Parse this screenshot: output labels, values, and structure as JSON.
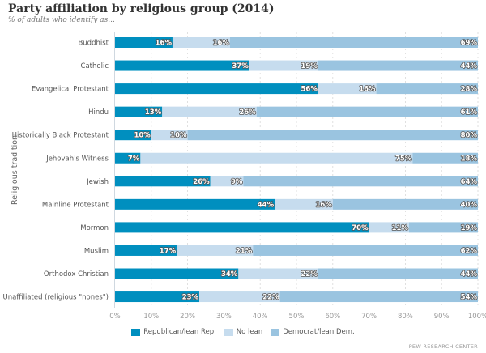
{
  "chart_data": {
    "type": "bar",
    "orientation": "horizontal",
    "stacked": true,
    "title": "Party affiliation by religious group (2014)",
    "subtitle": "% of adults who identify as...",
    "xlabel": "",
    "ylabel": "Religious tradition",
    "xlim": [
      0,
      100
    ],
    "x_ticks": [
      "0%",
      "10%",
      "20%",
      "30%",
      "40%",
      "50%",
      "60%",
      "70%",
      "80%",
      "90%",
      "100%"
    ],
    "grid": true,
    "legend_position": "bottom",
    "categories": [
      "Buddhist",
      "Catholic",
      "Evangelical Protestant",
      "Hindu",
      "Historically Black Protestant",
      "Jehovah's Witness",
      "Jewish",
      "Mainline Protestant",
      "Mormon",
      "Muslim",
      "Orthodox Christian",
      "Unaffiliated (religious \"nones\")"
    ],
    "series": [
      {
        "name": "Republican/lean Rep.",
        "color": "#008fbf",
        "values": [
          16,
          37,
          56,
          13,
          10,
          7,
          26,
          44,
          70,
          17,
          34,
          23
        ]
      },
      {
        "name": "No lean",
        "color": "#c6dcee",
        "values": [
          16,
          19,
          16,
          26,
          10,
          75,
          9,
          16,
          11,
          21,
          22,
          22
        ]
      },
      {
        "name": "Democrat/lean Dem.",
        "color": "#9ac4e0",
        "values": [
          69,
          44,
          28,
          61,
          80,
          18,
          64,
          40,
          19,
          62,
          44,
          54
        ]
      }
    ]
  },
  "credit": "PEW RESEARCH CENTER"
}
